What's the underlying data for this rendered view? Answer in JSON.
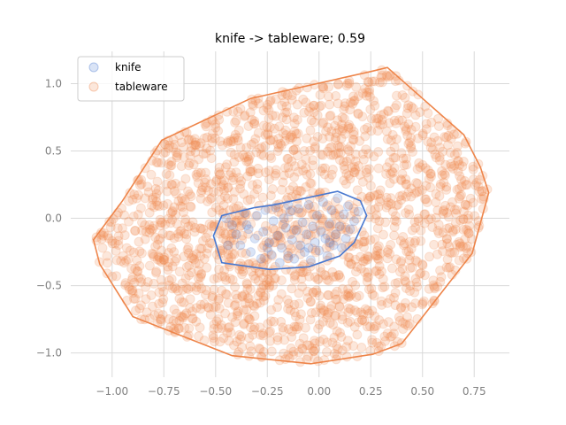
{
  "chart_data": {
    "type": "scatter",
    "title": "knife -> tableware; 0.59",
    "xlabel": "",
    "ylabel": "",
    "xlim": [
      -1.2,
      0.92
    ],
    "ylim": [
      -1.18,
      1.24
    ],
    "x_ticks": [
      -1.0,
      -0.75,
      -0.5,
      -0.25,
      0.0,
      0.25,
      0.5,
      0.75
    ],
    "x_tick_labels": [
      "−1.00",
      "−0.75",
      "−0.50",
      "−0.25",
      "0.00",
      "0.25",
      "0.50",
      "0.75"
    ],
    "y_ticks": [
      1.0,
      0.5,
      0.0,
      -0.5,
      -1.0
    ],
    "y_tick_labels": [
      "1.0",
      "0.5",
      "0.0",
      "−0.5",
      "−1.0"
    ],
    "grid": true,
    "legend_position": "top-left",
    "colors": {
      "knife": "#4878d0",
      "tableware": "#ee854a",
      "grid": "#d9d9d9"
    },
    "series": [
      {
        "name": "knife",
        "marker": "circle",
        "alpha": 0.2,
        "hull": [
          [
            -0.51,
            -0.13
          ],
          [
            -0.47,
            -0.33
          ],
          [
            -0.24,
            -0.38
          ],
          [
            -0.05,
            -0.36
          ],
          [
            0.1,
            -0.28
          ],
          [
            0.17,
            -0.18
          ],
          [
            0.23,
            0.02
          ],
          [
            0.2,
            0.13
          ],
          [
            0.09,
            0.2
          ],
          [
            -0.22,
            0.1
          ],
          [
            -0.31,
            0.08
          ],
          [
            -0.47,
            0.02
          ]
        ],
        "points": [
          [
            -0.45,
            0.0
          ],
          [
            -0.42,
            -0.05
          ],
          [
            -0.4,
            -0.12
          ],
          [
            -0.38,
            -0.2
          ],
          [
            -0.36,
            0.04
          ],
          [
            -0.34,
            -0.08
          ],
          [
            -0.33,
            -0.25
          ],
          [
            -0.31,
            -0.15
          ],
          [
            -0.3,
            0.02
          ],
          [
            -0.28,
            -0.3
          ],
          [
            -0.27,
            -0.1
          ],
          [
            -0.26,
            0.06
          ],
          [
            -0.24,
            -0.18
          ],
          [
            -0.23,
            -0.27
          ],
          [
            -0.22,
            -0.02
          ],
          [
            -0.21,
            0.08
          ],
          [
            -0.2,
            -0.13
          ],
          [
            -0.19,
            -0.33
          ],
          [
            -0.18,
            -0.22
          ],
          [
            -0.17,
            0.0
          ],
          [
            -0.16,
            -0.07
          ],
          [
            -0.15,
            -0.28
          ],
          [
            -0.14,
            0.05
          ],
          [
            -0.13,
            -0.16
          ],
          [
            -0.12,
            -0.3
          ],
          [
            -0.11,
            -0.09
          ],
          [
            -0.1,
            0.07
          ],
          [
            -0.09,
            -0.2
          ],
          [
            -0.08,
            -0.03
          ],
          [
            -0.07,
            -0.25
          ],
          [
            -0.06,
            -0.12
          ],
          [
            -0.05,
            0.1
          ],
          [
            -0.04,
            -0.31
          ],
          [
            -0.03,
            -0.06
          ],
          [
            -0.02,
            -0.18
          ],
          [
            -0.01,
            0.02
          ],
          [
            0.0,
            -0.24
          ],
          [
            0.01,
            -0.1
          ],
          [
            0.02,
            0.12
          ],
          [
            0.03,
            -0.15
          ],
          [
            0.04,
            -0.28
          ],
          [
            0.05,
            -0.04
          ],
          [
            0.06,
            0.06
          ],
          [
            0.07,
            -0.2
          ],
          [
            0.08,
            -0.12
          ],
          [
            0.09,
            0.15
          ],
          [
            0.1,
            -0.06
          ],
          [
            0.11,
            -0.22
          ],
          [
            0.12,
            0.03
          ],
          [
            0.13,
            -0.15
          ],
          [
            0.14,
            0.09
          ],
          [
            0.15,
            -0.08
          ],
          [
            0.17,
            -0.02
          ],
          [
            0.19,
            0.05
          ],
          [
            -0.35,
            -0.05
          ],
          [
            -0.25,
            -0.22
          ],
          [
            -0.15,
            0.1
          ],
          [
            -0.05,
            -0.22
          ],
          [
            0.05,
            -0.18
          ],
          [
            -0.44,
            -0.2
          ]
        ]
      },
      {
        "name": "tableware",
        "marker": "circle",
        "alpha": 0.2,
        "hull": [
          [
            -1.09,
            -0.16
          ],
          [
            -1.06,
            -0.34
          ],
          [
            -0.9,
            -0.73
          ],
          [
            -0.42,
            -1.02
          ],
          [
            -0.04,
            -1.08
          ],
          [
            0.26,
            -1.01
          ],
          [
            0.4,
            -0.93
          ],
          [
            0.74,
            -0.26
          ],
          [
            0.82,
            0.19
          ],
          [
            0.78,
            0.38
          ],
          [
            0.7,
            0.62
          ],
          [
            0.33,
            1.12
          ],
          [
            0.25,
            1.09
          ],
          [
            -0.33,
            0.89
          ],
          [
            -0.76,
            0.58
          ],
          [
            -0.95,
            0.13
          ]
        ],
        "points_count": 1800
      }
    ]
  }
}
